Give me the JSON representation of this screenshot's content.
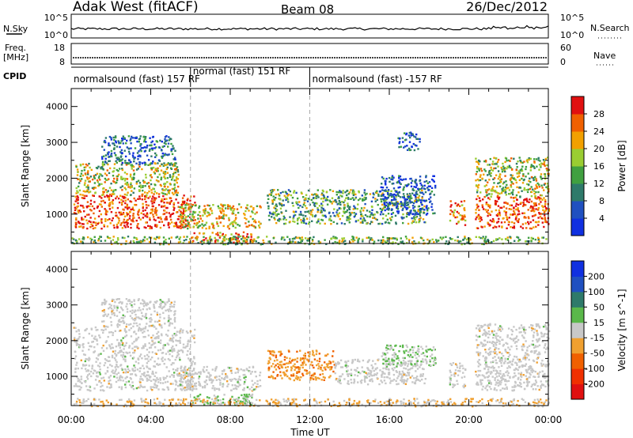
{
  "header": {
    "station": "Adak West (fitACF)",
    "beam": "Beam 08",
    "date": "26/Dec/2012"
  },
  "aux_panels": {
    "nsky_label": "N.Sky",
    "nsearch_label": "N.Search",
    "nsky_ticks": [
      "10^5",
      "10^0"
    ],
    "nsearch_ticks": [
      "10^5",
      "10^0"
    ],
    "freq_label": "Freq.",
    "freq_unit": "[MHz]",
    "freq_ticks": [
      "18",
      "8"
    ],
    "nave_label": "Nave",
    "nave_ticks": [
      "60",
      "0"
    ],
    "cpid_label": "CPID",
    "cpid_segments": [
      {
        "label": "normalsound (fast) 157 RF",
        "start_hour": 0,
        "end_hour": 6
      },
      {
        "label": "normal (fast) 151 RF",
        "start_hour": 6,
        "end_hour": 12
      },
      {
        "label": "normalsound (fast) -157 RF",
        "start_hour": 12,
        "end_hour": 24
      }
    ]
  },
  "chart_data": [
    {
      "type": "heatmap",
      "ylabel": "Slant Range [km]",
      "xlabel": "Time UT",
      "xlim": [
        0,
        24
      ],
      "ylim": [
        180,
        4500
      ],
      "xticks": [
        "00:00",
        "04:00",
        "08:00",
        "12:00",
        "16:00",
        "20:00",
        "00:00"
      ],
      "yticks": [
        1000,
        2000,
        3000,
        4000
      ],
      "colorbar": {
        "label": "Power [dB]",
        "ticks": [
          4,
          8,
          12,
          16,
          20,
          24,
          28
        ],
        "colors": [
          "#1030e0",
          "#2050c0",
          "#2e7a6a",
          "#40a040",
          "#9acd32",
          "#f2a000",
          "#f06000",
          "#e01010"
        ],
        "range": [
          0,
          32
        ]
      },
      "regions": [
        {
          "t": [
            0.1,
            6.2
          ],
          "r": [
            620,
            1550
          ],
          "v": 28
        },
        {
          "t": [
            0.2,
            5.4
          ],
          "r": [
            1550,
            2450
          ],
          "v": 18
        },
        {
          "t": [
            1.5,
            5.2
          ],
          "r": [
            2400,
            3200
          ],
          "v": 8
        },
        {
          "t": [
            5.4,
            9.5
          ],
          "r": [
            620,
            1300
          ],
          "v": 20
        },
        {
          "t": [
            6.0,
            9.2
          ],
          "r": [
            230,
            520
          ],
          "v": 26
        },
        {
          "t": [
            9.8,
            17.8
          ],
          "r": [
            750,
            1700
          ],
          "v": 14
        },
        {
          "t": [
            15.5,
            18.3
          ],
          "r": [
            1000,
            2100
          ],
          "v": 6
        },
        {
          "t": [
            19.0,
            19.8
          ],
          "r": [
            700,
            1400
          ],
          "v": 26
        },
        {
          "t": [
            20.3,
            24.0
          ],
          "r": [
            620,
            1500
          ],
          "v": 28
        },
        {
          "t": [
            20.3,
            24.0
          ],
          "r": [
            1500,
            2600
          ],
          "v": 18
        },
        {
          "t": [
            16.4,
            17.5
          ],
          "r": [
            2800,
            3300
          ],
          "v": 6
        },
        {
          "t": [
            0,
            24
          ],
          "r": [
            180,
            400
          ],
          "v": 16
        }
      ]
    },
    {
      "type": "heatmap",
      "ylabel": "Slant Range [km]",
      "xlabel": "Time UT",
      "xlim": [
        0,
        24
      ],
      "ylim": [
        180,
        4500
      ],
      "xticks": [
        "00:00",
        "04:00",
        "08:00",
        "12:00",
        "16:00",
        "20:00",
        "00:00"
      ],
      "yticks": [
        1000,
        2000,
        3000,
        4000
      ],
      "colorbar": {
        "label": "Velocity [m s^-1]",
        "ticks": [
          -200,
          -100,
          -50,
          -15,
          15,
          50,
          100,
          200
        ],
        "colors": [
          "#e01010",
          "#f03000",
          "#f06000",
          "#f0a030",
          "#c8c8c8",
          "#5ab84a",
          "#2e7a6a",
          "#2050c0",
          "#1030e0"
        ],
        "range": [
          -250,
          250
        ]
      },
      "regions": [
        {
          "t": [
            0.1,
            6.2
          ],
          "r": [
            620,
            2400
          ],
          "v": 0
        },
        {
          "t": [
            1.5,
            5.2
          ],
          "r": [
            2400,
            3200
          ],
          "v": 0
        },
        {
          "t": [
            5.4,
            9.5
          ],
          "r": [
            620,
            1300
          ],
          "v": 0
        },
        {
          "t": [
            6.0,
            9.2
          ],
          "r": [
            230,
            520
          ],
          "v": 40
        },
        {
          "t": [
            9.8,
            13.2
          ],
          "r": [
            900,
            1750
          ],
          "v": -70
        },
        {
          "t": [
            13.2,
            17.8
          ],
          "r": [
            800,
            1500
          ],
          "v": 0
        },
        {
          "t": [
            15.5,
            18.3
          ],
          "r": [
            1300,
            1900
          ],
          "v": 30
        },
        {
          "t": [
            19.0,
            19.8
          ],
          "r": [
            700,
            1400
          ],
          "v": 0
        },
        {
          "t": [
            20.3,
            24.0
          ],
          "r": [
            620,
            2500
          ],
          "v": 0
        },
        {
          "t": [
            0,
            24
          ],
          "r": [
            180,
            400
          ],
          "v": -30
        }
      ]
    }
  ]
}
